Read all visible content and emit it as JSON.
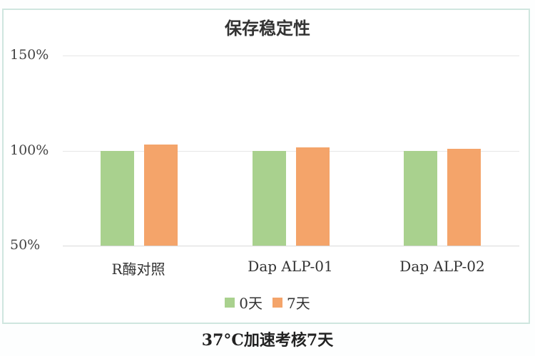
{
  "chart_data": {
    "type": "bar",
    "title": "保存稳定性",
    "categories": [
      "R酶对照",
      "Dap ALP-01",
      "Dap ALP-02"
    ],
    "series": [
      {
        "name": "0天",
        "color": "#a9d18e",
        "values": [
          100,
          100,
          100
        ]
      },
      {
        "name": "7天",
        "color": "#f4a46a",
        "values": [
          103,
          101.7,
          100.8
        ]
      }
    ],
    "xlabel": "",
    "ylabel": "",
    "ylim": [
      50,
      150
    ],
    "yticks": [
      "150%",
      "100%",
      "50%"
    ],
    "grid": true,
    "legend_position": "bottom",
    "caption": "37°C加速考核7天"
  }
}
